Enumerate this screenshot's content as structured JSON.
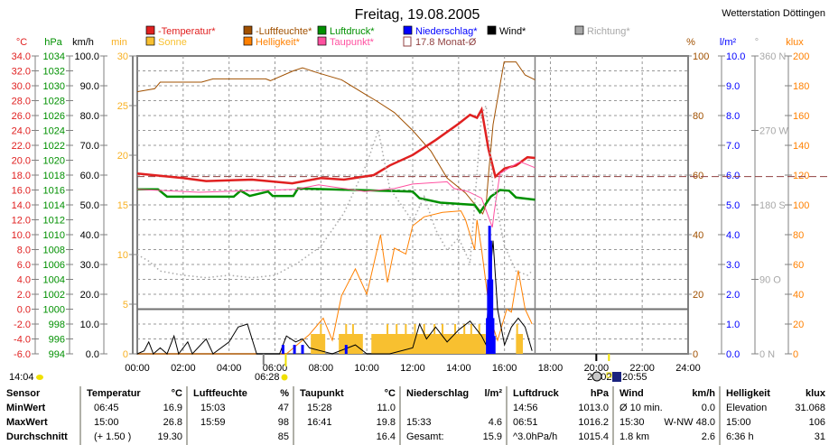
{
  "header": {
    "title": "Freitag, 19.08.2005",
    "station": "Wetterstation Döttingen"
  },
  "legend": [
    {
      "label": "-Temperatur*",
      "color": "#e02020"
    },
    {
      "label": "-Luftfeuchte*",
      "color": "#a05000"
    },
    {
      "label": "Luftdruck*",
      "color": "#009000"
    },
    {
      "label": "Niederschlag*",
      "color": "#0000ff"
    },
    {
      "label": "Wind*",
      "color": "#000000"
    },
    {
      "label": "Richtung*",
      "color": "#a8a8a8"
    },
    {
      "label": "Sonne",
      "color": "#f8c030"
    },
    {
      "label": "Helligkeit*",
      "color": "#ff8000"
    },
    {
      "label": "Taupunkt*",
      "color": "#ff50a0"
    },
    {
      "label": "17.8 Monat-Ø",
      "color": "#904040"
    }
  ],
  "axis_units": {
    "temp": "°C",
    "press": "hPa",
    "wind": "km/h",
    "sun": "min",
    "hum": "%",
    "rain": "l/m²",
    "dir": "°",
    "lux": "klux"
  },
  "time_labels": {
    "sunrise_left": "14:04",
    "sunrise": "06:28",
    "moonset": "20:02",
    "sunset": "20:55"
  },
  "chart_data": {
    "type": "line",
    "title": "Freitag, 19.08.2005",
    "x": {
      "label": "",
      "range": [
        0,
        24
      ],
      "ticks": [
        "00:00",
        "02:00",
        "04:00",
        "06:00",
        "08:00",
        "10:00",
        "12:00",
        "14:00",
        "16:00",
        "18:00",
        "20:00",
        "22:00",
        "24:00"
      ]
    },
    "current_time_h": 17.33,
    "monthly_avg_temp": 17.8,
    "zero_line_temp": 0,
    "axes": {
      "temp": {
        "range": [
          -6,
          34
        ],
        "ticks": [
          "34.0",
          "32.0",
          "30.0",
          "28.0",
          "26.0",
          "24.0",
          "22.0",
          "20.0",
          "18.0",
          "16.0",
          "14.0",
          "12.0",
          "10.0",
          "8.0",
          "6.0",
          "4.0",
          "2.0",
          "0.0",
          "-2.0",
          "-4.0",
          "-6.0"
        ]
      },
      "press": {
        "range": [
          994,
          1034
        ],
        "ticks": [
          "1034",
          "1032",
          "1030",
          "1028",
          "1026",
          "1024",
          "1022",
          "1020",
          "1018",
          "1016",
          "1014",
          "1012",
          "1010",
          "1008",
          "1006",
          "1004",
          "1002",
          "1000",
          "998",
          "996",
          "994"
        ]
      },
      "wind": {
        "range": [
          0,
          100
        ],
        "ticks": [
          "100.0",
          "90.0",
          "80.0",
          "70.0",
          "60.0",
          "50.0",
          "40.0",
          "30.0",
          "20.0",
          "10.0",
          "0.0"
        ]
      },
      "sun": {
        "range": [
          0,
          30
        ],
        "ticks": [
          "30",
          "25",
          "20",
          "15",
          "10",
          "5",
          "0"
        ]
      },
      "hum": {
        "range": [
          0,
          100
        ],
        "ticks": [
          "100",
          "80",
          "60",
          "40",
          "20",
          "0"
        ]
      },
      "rain": {
        "range": [
          0,
          10
        ],
        "ticks": [
          "10.0",
          "9.0",
          "8.0",
          "7.0",
          "6.0",
          "5.0",
          "4.0",
          "3.0",
          "2.0",
          "1.0",
          "0.0"
        ]
      },
      "dir": {
        "range": [
          0,
          360
        ],
        "ticks": [
          "360 N",
          "270 W",
          "180 S",
          "90  O",
          "0   N"
        ]
      },
      "lux": {
        "range": [
          0,
          200
        ],
        "ticks": [
          "200",
          "180",
          "160",
          "140",
          "120",
          "100",
          "80",
          "60",
          "40",
          "20",
          "0"
        ]
      }
    },
    "series": [
      {
        "name": "Luftfeuchte",
        "axis": "hum",
        "color": "#a05000",
        "width": 1,
        "points": [
          [
            0,
            88
          ],
          [
            0.76,
            89
          ],
          [
            1,
            91.2
          ],
          [
            2.8,
            91.2
          ],
          [
            3.3,
            92.3
          ],
          [
            5.6,
            92.3
          ],
          [
            5.8,
            91.7
          ],
          [
            6.8,
            95
          ],
          [
            7.2,
            96
          ],
          [
            7.8,
            94.5
          ],
          [
            8.9,
            92
          ],
          [
            9.9,
            87.3
          ],
          [
            10.4,
            85
          ],
          [
            11.2,
            81
          ],
          [
            12,
            75
          ],
          [
            12.8,
            68
          ],
          [
            13.5,
            59
          ],
          [
            14.3,
            54
          ],
          [
            15.05,
            47
          ],
          [
            15.2,
            50
          ],
          [
            15.3,
            60
          ],
          [
            15.5,
            77
          ],
          [
            15.98,
            98
          ],
          [
            16.5,
            98
          ],
          [
            16.9,
            93.6
          ],
          [
            17.33,
            92
          ]
        ]
      },
      {
        "name": "Temperatur",
        "axis": "temp",
        "color": "#e02020",
        "width": 2.5,
        "points": [
          [
            0,
            18.2
          ],
          [
            2,
            17.6
          ],
          [
            3,
            17.2
          ],
          [
            5,
            17.4
          ],
          [
            6.75,
            16.9
          ],
          [
            8,
            17.6
          ],
          [
            9,
            17.4
          ],
          [
            10.3,
            18
          ],
          [
            11,
            19.3
          ],
          [
            12,
            20.7
          ],
          [
            13,
            22.7
          ],
          [
            14,
            24.9
          ],
          [
            14.5,
            26.1
          ],
          [
            14.8,
            25.7
          ],
          [
            15,
            26.8
          ],
          [
            15.3,
            21.5
          ],
          [
            15.6,
            17.8
          ],
          [
            16,
            18.9
          ],
          [
            16.5,
            19.3
          ],
          [
            17,
            20.4
          ],
          [
            17.33,
            20.3
          ]
        ]
      },
      {
        "name": "Luftdruck",
        "axis": "press",
        "color": "#009000",
        "width": 2.5,
        "points": [
          [
            0,
            1016.1
          ],
          [
            0.9,
            1016.1
          ],
          [
            1.3,
            1015.1
          ],
          [
            4.2,
            1015.1
          ],
          [
            4.5,
            1015.9
          ],
          [
            4.9,
            1015.2
          ],
          [
            5.7,
            1015.8
          ],
          [
            5.9,
            1015.2
          ],
          [
            6.8,
            1015.2
          ],
          [
            7,
            1016.2
          ],
          [
            12,
            1015.8
          ],
          [
            12.3,
            1014.9
          ],
          [
            13.2,
            1014.3
          ],
          [
            14.7,
            1014
          ],
          [
            14.93,
            1013
          ],
          [
            15.4,
            1015.1
          ],
          [
            15.8,
            1016
          ],
          [
            16.2,
            1015.9
          ],
          [
            16.5,
            1015
          ],
          [
            17.33,
            1014.7
          ]
        ]
      },
      {
        "name": "Taupunkt",
        "axis": "temp",
        "color": "#ff50a0",
        "width": 1,
        "points": [
          [
            0,
            16.1
          ],
          [
            2.7,
            15.7
          ],
          [
            6.9,
            16.1
          ],
          [
            7.9,
            16.7
          ],
          [
            9.9,
            15.8
          ],
          [
            11.2,
            16.2
          ],
          [
            12,
            16.8
          ],
          [
            13.5,
            17.1
          ],
          [
            13.8,
            16.2
          ],
          [
            14.4,
            15.8
          ],
          [
            15,
            14.9
          ],
          [
            15.47,
            11
          ],
          [
            15.55,
            13
          ],
          [
            15.8,
            18.2
          ],
          [
            16.5,
            19.5
          ],
          [
            16.68,
            19.8
          ],
          [
            17.33,
            19
          ]
        ]
      },
      {
        "name": "Helligkeit",
        "axis": "lux",
        "color": "#ff8000",
        "width": 1,
        "points": [
          [
            0,
            0
          ],
          [
            6.5,
            0
          ],
          [
            7.5,
            13
          ],
          [
            8.1,
            24
          ],
          [
            8.5,
            9
          ],
          [
            8.9,
            39
          ],
          [
            9.5,
            57
          ],
          [
            10,
            40
          ],
          [
            10.3,
            60
          ],
          [
            10.6,
            80
          ],
          [
            10.9,
            48
          ],
          [
            11.2,
            71
          ],
          [
            11.7,
            67
          ],
          [
            12,
            86
          ],
          [
            12.5,
            92
          ],
          [
            13.3,
            95
          ],
          [
            14.1,
            96
          ],
          [
            14.3,
            90
          ],
          [
            14.5,
            80
          ],
          [
            14.7,
            70
          ],
          [
            14.8,
            90
          ],
          [
            15.0,
            70
          ],
          [
            15.4,
            23
          ],
          [
            15.7,
            9
          ],
          [
            16.1,
            30
          ],
          [
            16.3,
            28
          ],
          [
            16.6,
            56
          ],
          [
            16.9,
            30
          ],
          [
            17.2,
            20
          ]
        ]
      },
      {
        "name": "Richtung",
        "axis": "dir",
        "color": "#a8a8a8",
        "width": 1.5,
        "dash": "1.5 3",
        "points": [
          [
            0,
            120
          ],
          [
            0.5,
            112
          ],
          [
            1,
            100
          ],
          [
            2,
            95
          ],
          [
            3,
            92
          ],
          [
            4,
            95
          ],
          [
            5,
            92
          ],
          [
            6,
            95
          ],
          [
            7,
            110
          ],
          [
            8,
            130
          ],
          [
            9,
            170
          ],
          [
            10,
            230
          ],
          [
            10.5,
            270
          ],
          [
            11,
            200
          ],
          [
            12,
            160
          ],
          [
            12.5,
            190
          ],
          [
            13,
            150
          ],
          [
            13.5,
            125
          ],
          [
            14,
            140
          ],
          [
            14.5,
            110
          ],
          [
            15,
            290
          ],
          [
            15.2,
            300
          ],
          [
            15.5,
            200
          ],
          [
            16,
            130
          ],
          [
            16.5,
            100
          ],
          [
            17,
            95
          ],
          [
            17.2,
            100
          ]
        ]
      },
      {
        "name": "Wind",
        "axis": "wind",
        "color": "#000000",
        "width": 1,
        "points": [
          [
            0,
            0
          ],
          [
            0.3,
            1
          ],
          [
            0.5,
            4
          ],
          [
            0.7,
            0
          ],
          [
            1,
            2
          ],
          [
            1.3,
            0
          ],
          [
            1.6,
            6
          ],
          [
            1.8,
            0
          ],
          [
            2.2,
            4
          ],
          [
            2.4,
            0
          ],
          [
            3,
            5
          ],
          [
            3.3,
            0
          ],
          [
            4,
            4
          ],
          [
            4.4,
            9
          ],
          [
            4.8,
            10
          ],
          [
            5.2,
            0
          ],
          [
            6.2,
            0
          ],
          [
            6.5,
            6
          ],
          [
            6.9,
            4
          ],
          [
            7.2,
            5
          ],
          [
            7.5,
            2
          ],
          [
            8,
            1
          ],
          [
            8.5,
            0
          ],
          [
            9.5,
            3
          ],
          [
            10,
            0
          ],
          [
            11,
            0
          ],
          [
            12,
            2
          ],
          [
            12.3,
            10
          ],
          [
            12.6,
            5
          ],
          [
            13,
            9
          ],
          [
            13.5,
            4
          ],
          [
            14,
            8
          ],
          [
            14.5,
            11
          ],
          [
            15,
            6
          ],
          [
            15.2,
            3
          ],
          [
            15.3,
            20
          ],
          [
            15.5,
            38
          ],
          [
            15.7,
            15
          ],
          [
            16,
            3
          ],
          [
            16.3,
            9
          ],
          [
            16.6,
            12
          ],
          [
            16.9,
            9
          ],
          [
            17.2,
            1
          ]
        ]
      }
    ],
    "sun_blocks": [
      [
        7.56,
        8.19
      ],
      [
        8.78,
        9.83
      ],
      [
        10.2,
        15.18
      ],
      [
        16.5,
        16.8
      ]
    ],
    "sun_value": 2,
    "sun_spikes": [
      8.0,
      9.1,
      9.4,
      10.9,
      11.3,
      11.7,
      12.1,
      12.5,
      12.95,
      13.3,
      13.85,
      14.25,
      14.55,
      14.9,
      16.55
    ],
    "rain_bars": [
      [
        6.35,
        0.3
      ],
      [
        6.85,
        0.3
      ],
      [
        7.2,
        0.3
      ],
      [
        9.1,
        0.3
      ],
      [
        15.25,
        1.2
      ],
      [
        15.3,
        2.5
      ],
      [
        15.35,
        4.3
      ],
      [
        15.4,
        3.8
      ],
      [
        15.45,
        2.5
      ],
      [
        15.5,
        1.2
      ],
      [
        15.55,
        0.6
      ]
    ]
  },
  "table": {
    "columns": [
      {
        "label": "Temperatur",
        "unit": "°C",
        "rows": [
          [
            "06:45",
            "16.9"
          ],
          [
            "15:00",
            "26.8"
          ],
          [
            "(+ 1.50 )",
            "19.30"
          ]
        ]
      },
      {
        "label": "Luftfeuchte",
        "unit": "%",
        "rows": [
          [
            "15:03",
            "47"
          ],
          [
            "15:59",
            "98"
          ],
          [
            "",
            "85"
          ]
        ]
      },
      {
        "label": "Taupunkt",
        "unit": "°C",
        "rows": [
          [
            "15:28",
            "11.0"
          ],
          [
            "16:41",
            "19.8"
          ],
          [
            "",
            "16.4"
          ]
        ]
      },
      {
        "label": "Niederschlag",
        "unit": "l/m²",
        "rows": [
          [
            "",
            ""
          ],
          [
            "15:33",
            "4.6"
          ],
          [
            "Gesamt:",
            "15.9"
          ]
        ]
      },
      {
        "label": "Luftdruck",
        "unit": "hPa",
        "rows": [
          [
            "14:56",
            "1013.0"
          ],
          [
            "06:51",
            "1016.2"
          ],
          [
            "^3.0hPa/h",
            "1015.4"
          ]
        ]
      },
      {
        "label": "Wind",
        "unit": "km/h",
        "rows": [
          [
            "Ø 10 min.",
            "0.0"
          ],
          [
            "15:30",
            "W-NW 48.0"
          ],
          [
            "1.8 km",
            "2.6"
          ]
        ]
      },
      {
        "label": "Helligkeit",
        "unit": "klux",
        "rows": [
          [
            "Elevation",
            "31.068"
          ],
          [
            "15:00",
            "106"
          ],
          [
            "6:36 h",
            "31"
          ]
        ]
      }
    ],
    "row_labels": [
      "Sensor",
      "MinWert",
      "MaxWert",
      "Durchschnitt"
    ]
  }
}
